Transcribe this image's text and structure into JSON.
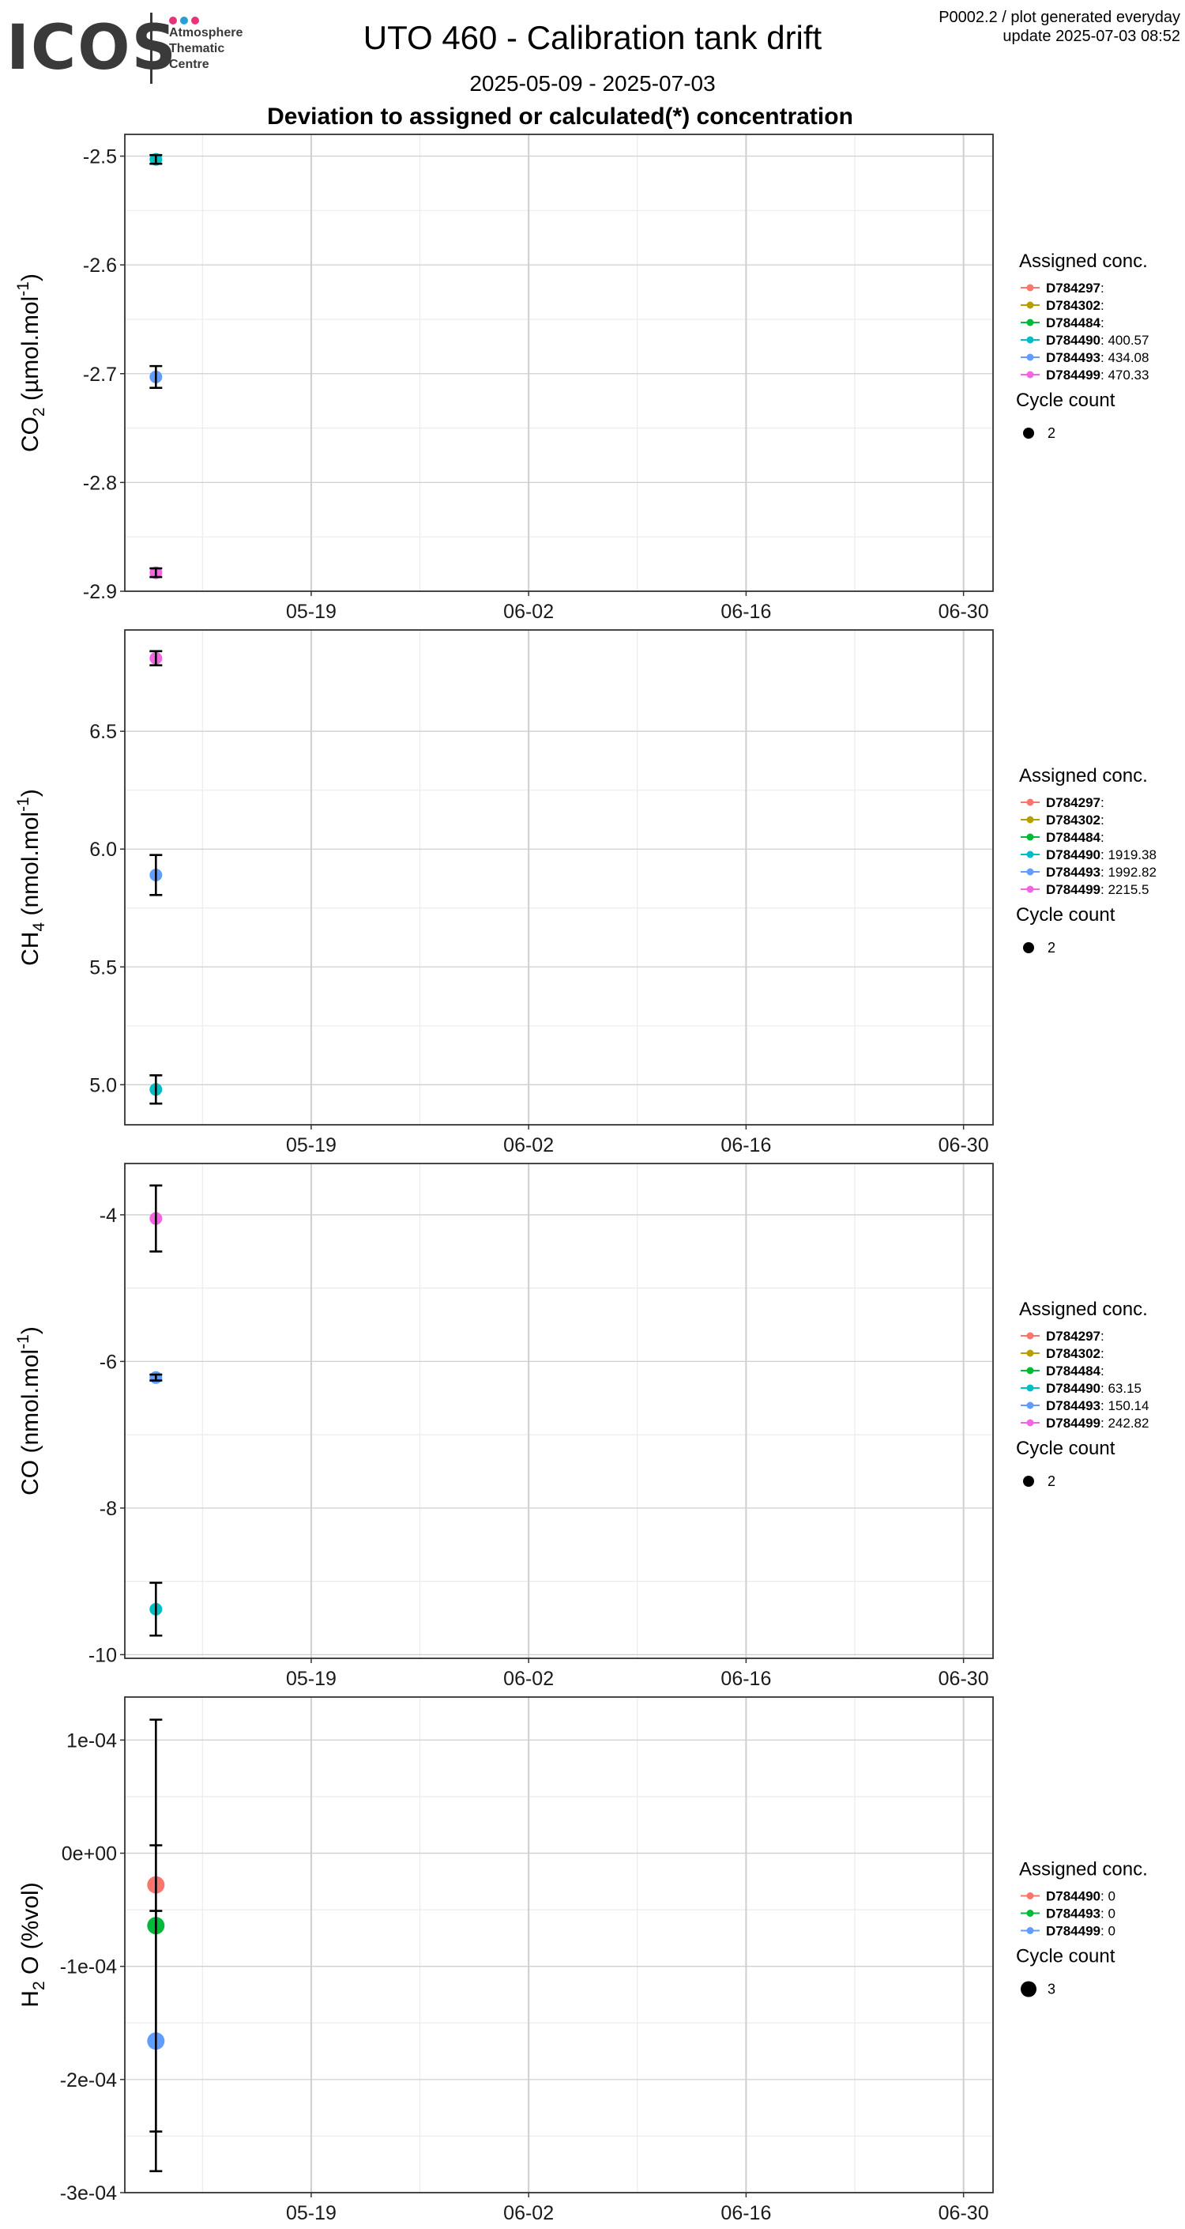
{
  "header": {
    "logo_text": "ICOS",
    "logo_subtitle": [
      "Atmosphere",
      "Thematic",
      "Centre"
    ],
    "logo_dot_colors": [
      "#e6347a",
      "#2a9fd6",
      "#e6347a"
    ],
    "title": "UTO 460 - Calibration tank drift",
    "date_range": "2025-05-09 - 2025-07-03",
    "subtitle": "Deviation to assigned or calculated(*) concentration",
    "meta_line1": "P0002.2 / plot generated everyday",
    "meta_line2": "update  2025-07-03 08:52"
  },
  "colors": {
    "D784297": "#f8766d",
    "D784302": "#b79f00",
    "D784484": "#00ba38",
    "D784490": "#00bfc4",
    "D784493": "#619cff",
    "D784499": "#f564e3",
    "grid_major": "#cfcfcf",
    "grid_minor": "#ebebeb"
  },
  "chart_data": [
    {
      "type": "scatter",
      "ylabel_main": "CO",
      "ylabel_sub": "2",
      "ylabel_unit": "(µmol.mol",
      "ylabel_sup": "-1",
      "ylim": [
        -2.9,
        -2.48
      ],
      "y_ticks": [
        -2.5,
        -2.6,
        -2.7,
        -2.8,
        -2.9
      ],
      "y_tick_labels": [
        "-2.5",
        "-2.6",
        "-2.7",
        "-2.8",
        "-2.9"
      ],
      "x_tick_labels": [
        "05-19",
        "06-02",
        "06-16",
        "06-30"
      ],
      "legend_title": "Assigned conc.",
      "legend": [
        {
          "id": "D784297",
          "value": ""
        },
        {
          "id": "D784302",
          "value": ""
        },
        {
          "id": "D784484",
          "value": ""
        },
        {
          "id": "D784490",
          "value": "400.57"
        },
        {
          "id": "D784493",
          "value": "434.08"
        },
        {
          "id": "D784499",
          "value": "470.33"
        }
      ],
      "size_title": "Cycle count",
      "size_value": "2",
      "points": [
        {
          "series": "D784490",
          "x": "2025-05-09",
          "y": -2.503,
          "err": 0.004
        },
        {
          "series": "D784493",
          "x": "2025-05-09",
          "y": -2.703,
          "err": 0.01
        },
        {
          "series": "D784499",
          "x": "2025-05-09",
          "y": -2.883,
          "err": 0.004
        }
      ]
    },
    {
      "type": "scatter",
      "ylabel_main": "CH",
      "ylabel_sub": "4",
      "ylabel_unit": "(nmol.mol",
      "ylabel_sup": "-1",
      "ylim": [
        4.83,
        6.93
      ],
      "y_ticks": [
        5.0,
        5.5,
        6.0,
        6.5
      ],
      "y_tick_labels": [
        "5.0",
        "5.5",
        "6.0",
        "6.5"
      ],
      "x_tick_labels": [
        "05-19",
        "06-02",
        "06-16",
        "06-30"
      ],
      "legend_title": "Assigned conc.",
      "legend": [
        {
          "id": "D784297",
          "value": ""
        },
        {
          "id": "D784302",
          "value": ""
        },
        {
          "id": "D784484",
          "value": ""
        },
        {
          "id": "D784490",
          "value": "1919.38"
        },
        {
          "id": "D784493",
          "value": "1992.82"
        },
        {
          "id": "D784499",
          "value": "2215.5"
        }
      ],
      "size_title": "Cycle count",
      "size_value": "2",
      "points": [
        {
          "series": "D784490",
          "x": "2025-05-09",
          "y": 4.98,
          "err": 0.06
        },
        {
          "series": "D784493",
          "x": "2025-05-09",
          "y": 5.89,
          "err": 0.085
        },
        {
          "series": "D784499",
          "x": "2025-05-09",
          "y": 6.81,
          "err": 0.03
        }
      ]
    },
    {
      "type": "scatter",
      "ylabel_main": "CO",
      "ylabel_sub": "",
      "ylabel_unit": "(nmol.mol",
      "ylabel_sup": "-1",
      "ylim": [
        -10.05,
        -3.3
      ],
      "y_ticks": [
        -4,
        -6,
        -8,
        -10
      ],
      "y_tick_labels": [
        "-4",
        "-6",
        "-8",
        "-10"
      ],
      "x_tick_labels": [
        "05-19",
        "06-02",
        "06-16",
        "06-30"
      ],
      "legend_title": "Assigned conc.",
      "legend": [
        {
          "id": "D784297",
          "value": ""
        },
        {
          "id": "D784302",
          "value": ""
        },
        {
          "id": "D784484",
          "value": ""
        },
        {
          "id": "D784490",
          "value": "63.15"
        },
        {
          "id": "D784493",
          "value": "150.14"
        },
        {
          "id": "D784499",
          "value": "242.82"
        }
      ],
      "size_title": "Cycle count",
      "size_value": "2",
      "points": [
        {
          "series": "D784490",
          "x": "2025-05-09",
          "y": -9.38,
          "err": 0.36
        },
        {
          "series": "D784493",
          "x": "2025-05-09",
          "y": -6.22,
          "err": 0.04
        },
        {
          "series": "D784499",
          "x": "2025-05-09",
          "y": -4.05,
          "err": 0.45
        }
      ]
    },
    {
      "type": "scatter",
      "ylabel_main": "H",
      "ylabel_sub": "2",
      "ylabel_unit": "O (%vol)",
      "ylabel_sup": "",
      "ylim": [
        -0.0003,
        0.000138
      ],
      "y_ticks": [
        0.0001,
        0.0,
        -0.0001,
        -0.0002,
        -0.0003
      ],
      "y_tick_labels": [
        "1e-04",
        "0e+00",
        "-1e-04",
        "-2e-04",
        "-3e-04"
      ],
      "x_tick_labels": [
        "05-19",
        "06-02",
        "06-16",
        "06-30"
      ],
      "legend_title": "Assigned conc.",
      "legend": [
        {
          "id": "D784490",
          "value": "0",
          "color_key": "D784297"
        },
        {
          "id": "D784493",
          "value": "0",
          "color_key": "D784484"
        },
        {
          "id": "D784499",
          "value": "0",
          "color_key": "D784493"
        }
      ],
      "size_title": "Cycle count",
      "size_value": "3",
      "points": [
        {
          "series": "D784490",
          "color_key": "D784297",
          "x": "2025-05-09",
          "y": -2.8e-05,
          "err": 3.5e-05
        },
        {
          "series": "D784493",
          "color_key": "D784484",
          "x": "2025-05-09",
          "y": -6.4e-05,
          "err": 0.000182
        },
        {
          "series": "D784499",
          "color_key": "D784493",
          "x": "2025-05-09",
          "y": -0.000166,
          "err": 0.000115
        }
      ]
    }
  ]
}
